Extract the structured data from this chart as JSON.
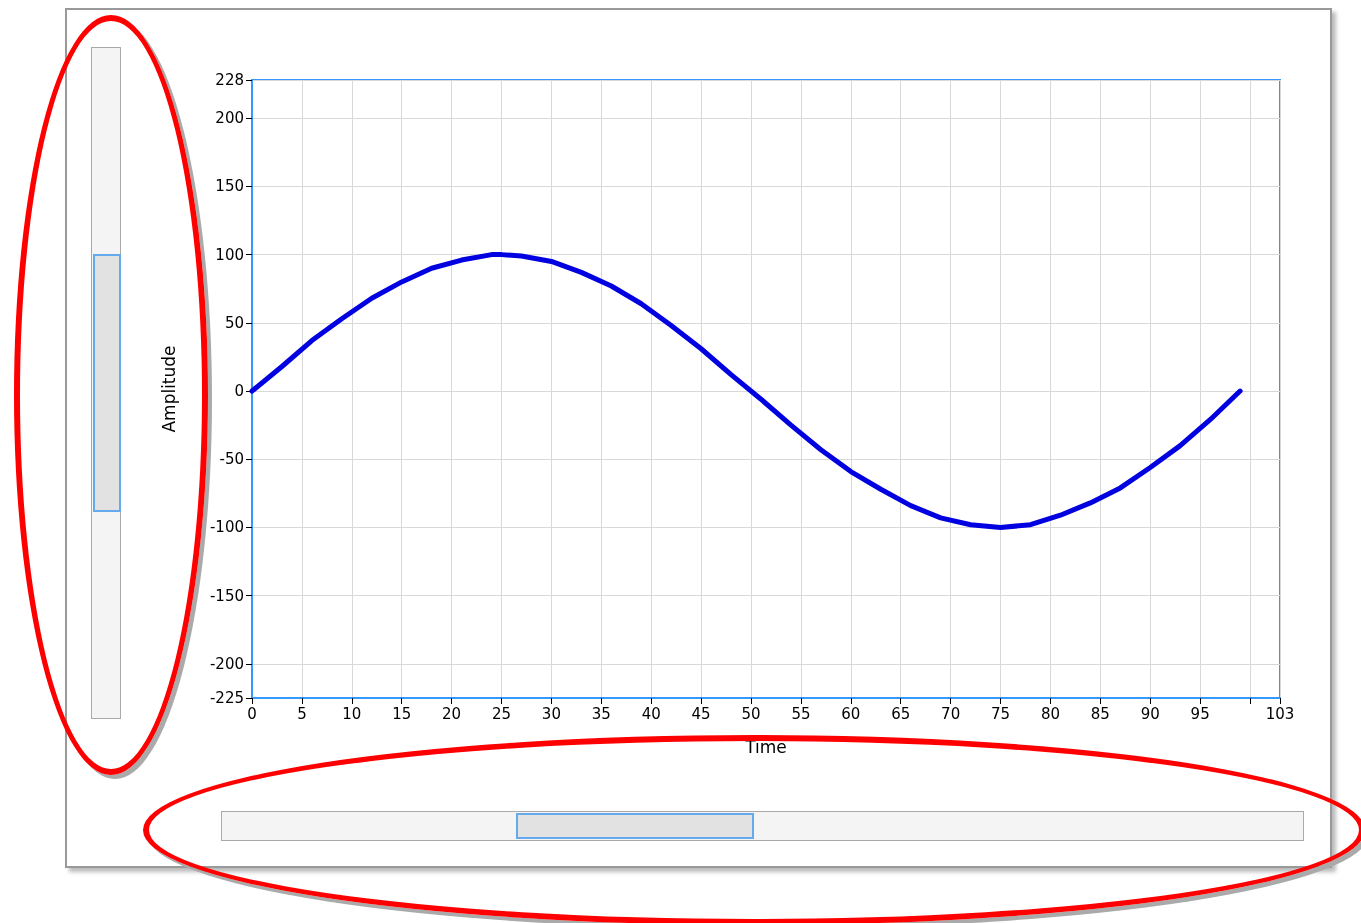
{
  "chart_data": {
    "type": "line",
    "xlabel": "Time",
    "ylabel": "Amplitude",
    "x": [
      0,
      3,
      6,
      9,
      12,
      15,
      18,
      21,
      24,
      25,
      27,
      30,
      33,
      36,
      39,
      42,
      45,
      48,
      51,
      54,
      57,
      60,
      63,
      66,
      69,
      72,
      75,
      78,
      81,
      84,
      87,
      90,
      93,
      96,
      99
    ],
    "series": [
      {
        "color": "#0000e0",
        "values": [
          0,
          18,
          37,
          53,
          68,
          80,
          90,
          96,
          100,
          100,
          99,
          95,
          87,
          77,
          64,
          48,
          31,
          12,
          -6,
          -25,
          -43,
          -59,
          -72,
          -84,
          -93,
          -98,
          -100,
          -98,
          -91,
          -82,
          -71,
          -56,
          -40,
          -21,
          0
        ]
      }
    ],
    "xlim": [
      0,
      103
    ],
    "xticks": [
      0,
      5,
      10,
      15,
      20,
      25,
      30,
      35,
      40,
      45,
      50,
      55,
      60,
      65,
      70,
      75,
      80,
      85,
      90,
      95,
      {
        "value": 100,
        "label": null
      },
      103
    ],
    "ylim": [
      -225,
      228
    ],
    "yticks": [
      -225,
      -200,
      -150,
      -100,
      -50,
      0,
      50,
      100,
      150,
      200,
      228
    ],
    "grid": true,
    "marker": "none",
    "line_style": "solid",
    "legend": false
  }
}
